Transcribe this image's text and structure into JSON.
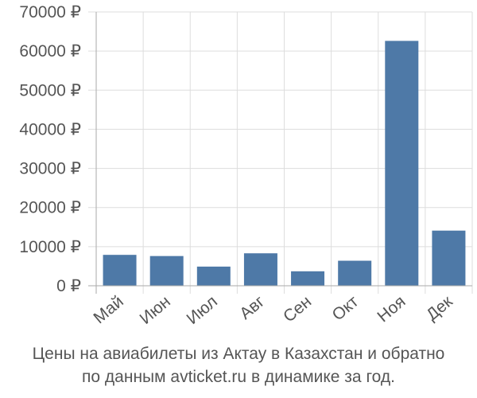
{
  "chart_data": {
    "type": "bar",
    "categories": [
      "Май",
      "Июн",
      "Июл",
      "Авг",
      "Сен",
      "Окт",
      "Ноя",
      "Дек"
    ],
    "values": [
      7900,
      7600,
      4900,
      8300,
      3700,
      6400,
      62600,
      14100
    ],
    "yticks": [
      "0 ₽",
      "10000 ₽",
      "20000 ₽",
      "30000 ₽",
      "40000 ₽",
      "50000 ₽",
      "60000 ₽",
      "70000 ₽"
    ],
    "ylim": [
      0,
      70000
    ],
    "grid": true,
    "colors": {
      "bar": "#4e79a7",
      "grid": "#dddddd",
      "axis": "#aaaaaa",
      "text": "#555555"
    }
  },
  "caption": {
    "line1": "Цены на авиабилеты из Актау в Казахстан и обратно",
    "line2": "по данным avticket.ru в динамике за год."
  }
}
